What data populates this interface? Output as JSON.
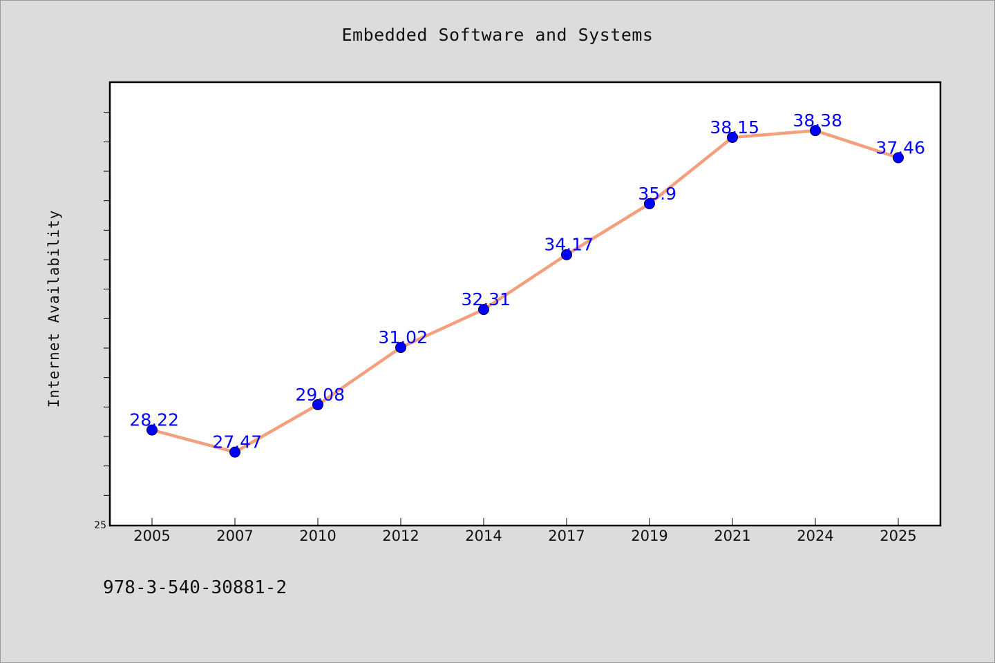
{
  "chart_data": {
    "type": "line",
    "title": "Embedded Software and Systems",
    "xlabel": "",
    "ylabel": "Internet Availability",
    "categories": [
      "2005",
      "2007",
      "2010",
      "2012",
      "2014",
      "2017",
      "2019",
      "2021",
      "2024",
      "2025"
    ],
    "series": [
      {
        "values": [
          28.22,
          27.47,
          29.08,
          31.02,
          32.31,
          34.17,
          35.9,
          38.15,
          38.38,
          37.46
        ]
      }
    ],
    "data_labels": [
      "28.22",
      "27.47",
      "29.08",
      "31.02",
      "32.31",
      "34.17",
      "35.9",
      "38.15",
      "38.38",
      "37.46"
    ],
    "ylim": [
      25,
      40
    ],
    "y_tick_labels": [
      "25"
    ],
    "grid": false,
    "legend": "none",
    "colors": {
      "line": "#f4a07e",
      "marker": "#0000ff",
      "data_label": "#0000ff",
      "background": "#dcdcdc",
      "plot_background": "#ffffff"
    }
  },
  "footer": {
    "code": "978-3-540-30881-2"
  }
}
